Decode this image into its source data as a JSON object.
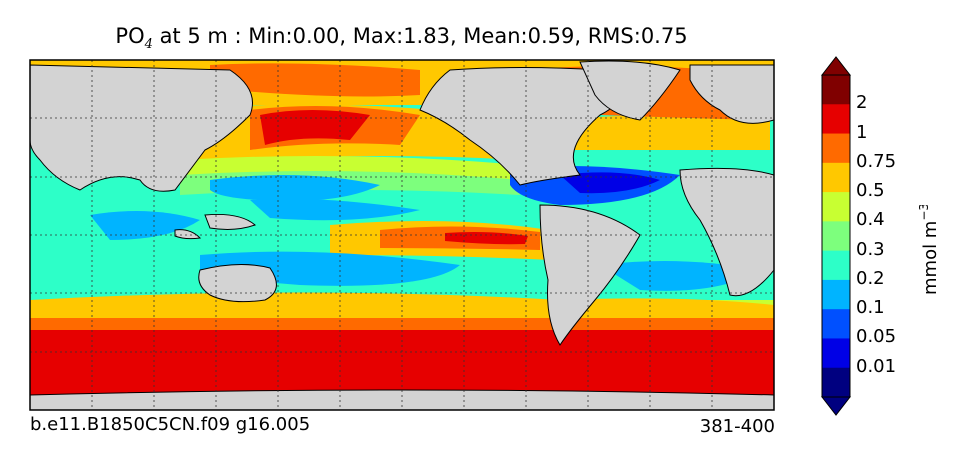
{
  "title": {
    "prefix": "PO",
    "subscript": "4",
    "suffix": " at 5 m : Min:0.00, Max:1.83, Mean:0.59, RMS:0.75"
  },
  "footer": {
    "left": "b.e11.B1850C5CN.f09 g16.005",
    "right": "381-400"
  },
  "colorbar": {
    "label_base": "mmol m",
    "label_exp": "−3",
    "ticks": [
      "2",
      "1",
      "0.75",
      "0.5",
      "0.4",
      "0.3",
      "0.2",
      "0.1",
      "0.05",
      "0.01"
    ],
    "colors": [
      "#800000",
      "#e60000",
      "#ff6a00",
      "#ffc800",
      "#c8ff32",
      "#7dff7d",
      "#2dffc8",
      "#00b4ff",
      "#0050ff",
      "#0000e6",
      "#000080"
    ]
  },
  "colors": {
    "land": "#d3d3d3",
    "southern_ocean": "#e60000"
  }
}
